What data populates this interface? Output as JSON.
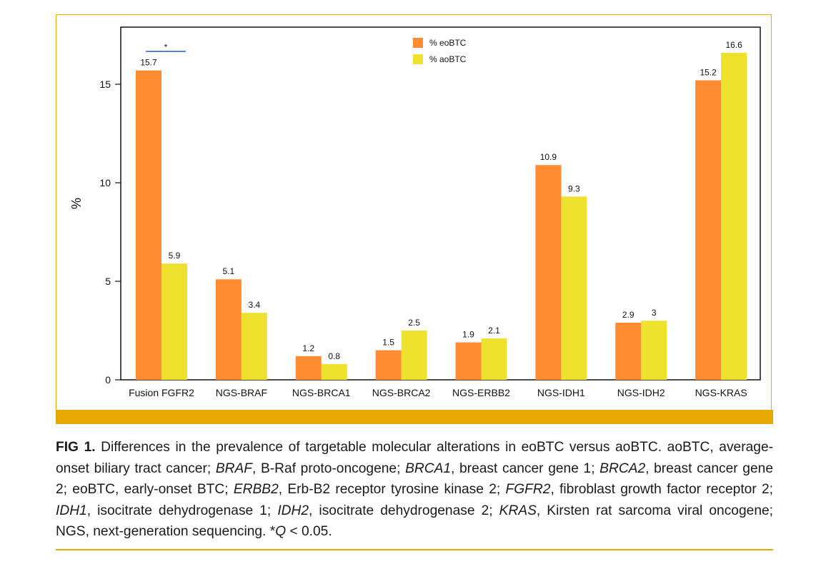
{
  "chart_data": {
    "type": "bar",
    "categories": [
      "Fusion FGFR2",
      "NGS-BRAF",
      "NGS-BRCA1",
      "NGS-BRCA2",
      "NGS-ERBB2",
      "NGS-IDH1",
      "NGS-IDH2",
      "NGS-KRAS"
    ],
    "series": [
      {
        "name": "% eoBTC",
        "color": "#ff8c33",
        "values": [
          15.7,
          5.1,
          1.2,
          1.5,
          1.9,
          10.9,
          2.9,
          15.2
        ],
        "labels": [
          "15.7",
          "5.1",
          "1.2",
          "1.5",
          "1.9",
          "10.9",
          "2.9",
          "15.2"
        ]
      },
      {
        "name": "% aoBTC",
        "color": "#eee22e",
        "values": [
          5.9,
          3.4,
          0.8,
          2.5,
          2.1,
          9.3,
          3,
          16.6
        ],
        "labels": [
          "5.9",
          "3.4",
          "0.8",
          "2.5",
          "2.1",
          "9.3",
          "3",
          "16.6"
        ]
      }
    ],
    "ylabel": "%",
    "ylim": [
      0,
      18
    ],
    "yticks": [
      0,
      5,
      10,
      15
    ],
    "ytick_labels": [
      "0",
      "5",
      "10",
      "15"
    ],
    "grid": false,
    "legend_position": "top-center",
    "annotation": {
      "text": "*",
      "category": "Fusion FGFR2",
      "color": "#1f5fbf",
      "meaning": "significance bracket"
    }
  },
  "caption": {
    "figure_label": "FIG 1.",
    "segments": [
      {
        "t": " Differences in the prevalence of targetable molecular alterations in eoBTC versus aoBTC. aoBTC, average-onset biliary tract cancer; ",
        "i": false
      },
      {
        "t": "BRAF",
        "i": true
      },
      {
        "t": ", B-Raf proto-oncogene; ",
        "i": false
      },
      {
        "t": "BRCA1",
        "i": true
      },
      {
        "t": ", breast cancer gene 1; ",
        "i": false
      },
      {
        "t": "BRCA2",
        "i": true
      },
      {
        "t": ", breast cancer gene 2; eoBTC, early-onset BTC; ",
        "i": false
      },
      {
        "t": "ERBB2",
        "i": true
      },
      {
        "t": ", Erb-B2 receptor tyrosine kinase 2; ",
        "i": false
      },
      {
        "t": "FGFR2",
        "i": true
      },
      {
        "t": ", fibroblast growth factor receptor 2; ",
        "i": false
      },
      {
        "t": "IDH1",
        "i": true
      },
      {
        "t": ", isocitrate dehydrogenase 1; ",
        "i": false
      },
      {
        "t": "IDH2",
        "i": true
      },
      {
        "t": ", isocitrate dehydrogenase 2; ",
        "i": false
      },
      {
        "t": "KRAS",
        "i": true
      },
      {
        "t": ", Kirsten rat sarcoma viral oncogene; NGS, next-generation sequencing. *",
        "i": false
      },
      {
        "t": "Q",
        "i": true
      },
      {
        "t": " < 0.05.",
        "i": false
      }
    ]
  },
  "colors": {
    "accent_gold": "#e8a800",
    "significance_line": "#1f5fbf"
  }
}
